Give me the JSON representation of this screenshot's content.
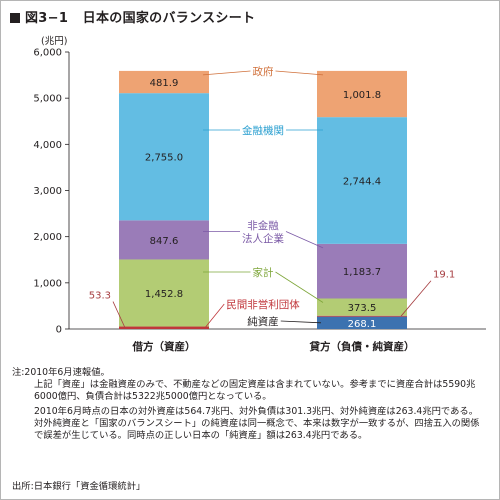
{
  "title_prefix": "図3−1",
  "title_text": "日本の国家のバランスシート",
  "chart_data": {
    "type": "bar",
    "stacked": true,
    "unit_label": "(兆円)",
    "ylim": [
      0,
      6000
    ],
    "yticks": [
      "0",
      "1,000",
      "2,000",
      "3,000",
      "4,000",
      "5,000",
      "6,000"
    ],
    "categories": [
      "借方（資産）",
      "貸方（負債・純資産）"
    ],
    "series": [
      {
        "name": "純資産",
        "color": "#3c72b0",
        "values": [
          null,
          268.1
        ],
        "labels": [
          "",
          "268.1"
        ]
      },
      {
        "name": "民間非営利団体",
        "color": "#c0363b",
        "values": [
          53.3,
          19.1
        ],
        "labels": [
          "53.3",
          "19.1"
        ]
      },
      {
        "name": "家計",
        "color": "#b3cc74",
        "values": [
          1452.8,
          373.5
        ],
        "labels": [
          "1,452.8",
          "373.5"
        ]
      },
      {
        "name": "非金融\n法人企業",
        "color": "#9a7cb8",
        "values": [
          847.6,
          1183.7
        ],
        "labels": [
          "847.6",
          "1,183.7"
        ]
      },
      {
        "name": "金融機関",
        "color": "#63bde3",
        "values": [
          2755.0,
          2744.4
        ],
        "labels": [
          "2,755.0",
          "2,744.4"
        ]
      },
      {
        "name": "政府",
        "color": "#eea373",
        "values": [
          481.9,
          1001.8
        ],
        "labels": [
          "481.9",
          "1,001.8"
        ]
      }
    ]
  },
  "notes": {
    "head": "注:2010年6月速報値。",
    "para1": "上記「資産」は金融資産のみで、不動産などの固定資産は含まれていない。参考までに資産合計は5590兆6000億円、負債合計は5322兆5000億円となっている。",
    "para2": "2010年6月時点の日本の対外資産は564.7兆円、対外負債は301.3兆円、対外純資産は263.4兆円である。対外純資産と「国家のバランスシート」の純資産は同一概念で、本来は数字が一致するが、四捨五入の関係で誤差が生じている。同時点の正しい日本の「純資産」額は263.4兆円である。"
  },
  "source": "出所:日本銀行「資金循環統計」"
}
